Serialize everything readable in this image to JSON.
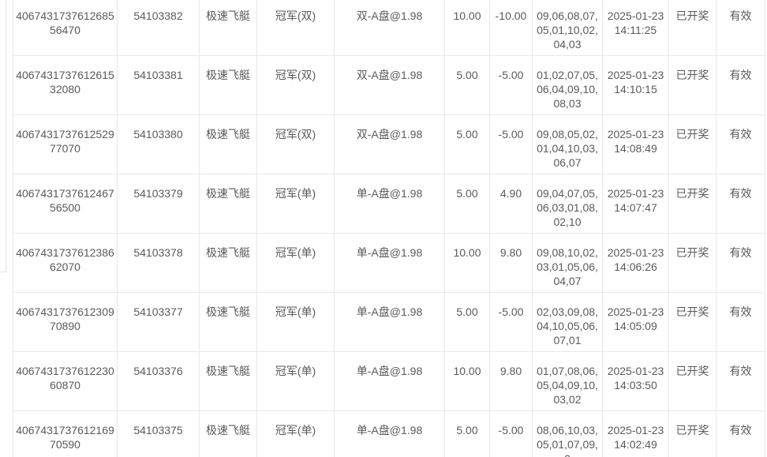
{
  "theme": {
    "background": "#ffffff",
    "text_color": "#5a5a5a",
    "grid_border_color": "#e9e9e9",
    "panel_edge_color": "#e4e4e4"
  },
  "table": {
    "rows": [
      {
        "order_id": "406743173761268556470",
        "issue": "54103382",
        "game": "极速飞艇",
        "play": "冠军(双)",
        "bet": "双-A盘@1.98",
        "amount": "10.00",
        "profit": "-10.00",
        "result": "09,06,08,07,05,01,10,02,04,03",
        "time": "2025-01-23 14:11:25",
        "status": "已开奖",
        "valid": "有效"
      },
      {
        "order_id": "406743173761261532080",
        "issue": "54103381",
        "game": "极速飞艇",
        "play": "冠军(双)",
        "bet": "双-A盘@1.98",
        "amount": "5.00",
        "profit": "-5.00",
        "result": "01,02,07,05,06,04,09,10,08,03",
        "time": "2025-01-23 14:10:15",
        "status": "已开奖",
        "valid": "有效"
      },
      {
        "order_id": "406743173761252977070",
        "issue": "54103380",
        "game": "极速飞艇",
        "play": "冠军(双)",
        "bet": "双-A盘@1.98",
        "amount": "5.00",
        "profit": "-5.00",
        "result": "09,08,05,02,01,04,10,03,06,07",
        "time": "2025-01-23 14:08:49",
        "status": "已开奖",
        "valid": "有效"
      },
      {
        "order_id": "406743173761246756500",
        "issue": "54103379",
        "game": "极速飞艇",
        "play": "冠军(单)",
        "bet": "单-A盘@1.98",
        "amount": "5.00",
        "profit": "4.90",
        "result": "09,04,07,05,06,03,01,08,02,10",
        "time": "2025-01-23 14:07:47",
        "status": "已开奖",
        "valid": "有效"
      },
      {
        "order_id": "406743173761238662070",
        "issue": "54103378",
        "game": "极速飞艇",
        "play": "冠军(单)",
        "bet": "单-A盘@1.98",
        "amount": "10.00",
        "profit": "9.80",
        "result": "09,08,10,02,03,01,05,06,04,07",
        "time": "2025-01-23 14:06:26",
        "status": "已开奖",
        "valid": "有效"
      },
      {
        "order_id": "406743173761230970890",
        "issue": "54103377",
        "game": "极速飞艇",
        "play": "冠军(单)",
        "bet": "单-A盘@1.98",
        "amount": "5.00",
        "profit": "-5.00",
        "result": "02,03,09,08,04,10,05,06,07,01",
        "time": "2025-01-23 14:05:09",
        "status": "已开奖",
        "valid": "有效"
      },
      {
        "order_id": "406743173761223060870",
        "issue": "54103376",
        "game": "极速飞艇",
        "play": "冠军(单)",
        "bet": "单-A盘@1.98",
        "amount": "10.00",
        "profit": "9.80",
        "result": "01,07,08,06,05,04,09,10,03,02",
        "time": "2025-01-23 14:03:50",
        "status": "已开奖",
        "valid": "有效"
      },
      {
        "order_id": "406743173761216970590",
        "issue": "54103375",
        "game": "极速飞艇",
        "play": "冠军(单)",
        "bet": "单-A盘@1.98",
        "amount": "5.00",
        "profit": "-5.00",
        "result": "08,06,10,03,05,01,07,09,0",
        "time": "2025-01-23 14:02:49",
        "status": "已开奖",
        "valid": "有效"
      }
    ]
  }
}
